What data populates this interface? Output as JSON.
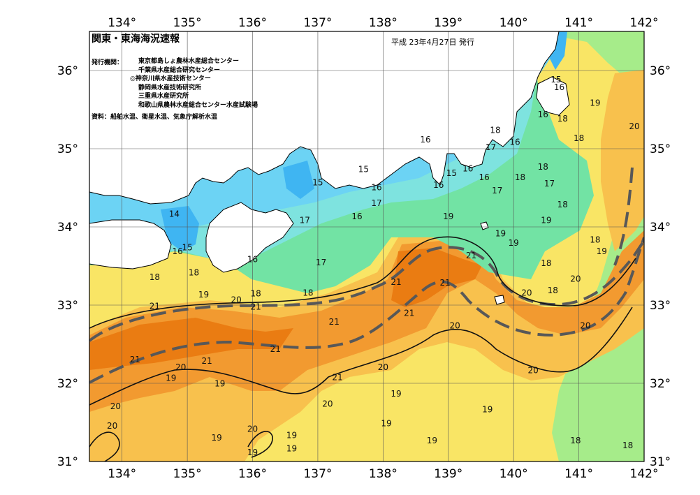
{
  "header": {
    "title": "関東・東海海況速報",
    "date": "平成 23年4月27日 発行"
  },
  "issuers": {
    "label": "発行機関：",
    "list": [
      "東京都島しょ農林水産総合センター",
      "千葉県水産総合研究センター",
      "◎神奈川県水産技術センター",
      "静岡県水産技術研究所",
      "三重県水産研究所",
      "和歌山県農林水産総合センター水産試験場"
    ]
  },
  "sources": "資料：船舶水温、衛星水温、気象庁解析水温",
  "axes": {
    "lon_labels": [
      "134°",
      "135°",
      "136°",
      "137°",
      "138°",
      "139°",
      "140°",
      "141°",
      "142°"
    ],
    "lat_labels": [
      "36°",
      "35°",
      "34°",
      "33°",
      "32°",
      "31°"
    ],
    "lon_range": [
      133.5,
      142.0
    ],
    "lat_range": [
      31.0,
      36.5
    ]
  },
  "temperature_colors": {
    "14": "#3fb5f2",
    "15": "#6cd3f4",
    "16": "#7ee3df",
    "17": "#72e3a4",
    "18": "#a6ec8a",
    "19": "#f9e565",
    "20": "#f8c14d",
    "21": "#f29a30",
    "22": "#ea7c12"
  },
  "land_color": "#ffffff",
  "contour_labels": [
    {
      "t": "15",
      "lon": 140.65,
      "lat": 35.85
    },
    {
      "t": "16",
      "lon": 140.7,
      "lat": 35.75
    },
    {
      "t": "19",
      "lon": 141.25,
      "lat": 35.55
    },
    {
      "t": "20",
      "lon": 141.85,
      "lat": 35.25
    },
    {
      "t": "16",
      "lon": 140.45,
      "lat": 35.4
    },
    {
      "t": "18",
      "lon": 140.75,
      "lat": 35.35
    },
    {
      "t": "18",
      "lon": 141.0,
      "lat": 35.1
    },
    {
      "t": "18",
      "lon": 139.72,
      "lat": 35.2
    },
    {
      "t": "17",
      "lon": 139.65,
      "lat": 34.98
    },
    {
      "t": "16",
      "lon": 140.02,
      "lat": 35.05
    },
    {
      "t": "16",
      "lon": 138.65,
      "lat": 35.08
    },
    {
      "t": "15",
      "lon": 137.7,
      "lat": 34.7
    },
    {
      "t": "15",
      "lon": 137.0,
      "lat": 34.53
    },
    {
      "t": "16",
      "lon": 137.9,
      "lat": 34.47
    },
    {
      "t": "16",
      "lon": 138.85,
      "lat": 34.5
    },
    {
      "t": "15",
      "lon": 139.05,
      "lat": 34.65
    },
    {
      "t": "16",
      "lon": 139.3,
      "lat": 34.71
    },
    {
      "t": "16",
      "lon": 139.55,
      "lat": 34.6
    },
    {
      "t": "18",
      "lon": 140.45,
      "lat": 34.73
    },
    {
      "t": "18",
      "lon": 140.1,
      "lat": 34.6
    },
    {
      "t": "17",
      "lon": 140.55,
      "lat": 34.52
    },
    {
      "t": "17",
      "lon": 139.75,
      "lat": 34.43
    },
    {
      "t": "17",
      "lon": 137.9,
      "lat": 34.27
    },
    {
      "t": "16",
      "lon": 137.6,
      "lat": 34.1
    },
    {
      "t": "17",
      "lon": 136.8,
      "lat": 34.05
    },
    {
      "t": "14",
      "lon": 134.8,
      "lat": 34.13
    },
    {
      "t": "15",
      "lon": 135.0,
      "lat": 33.7
    },
    {
      "t": "16",
      "lon": 134.85,
      "lat": 33.65
    },
    {
      "t": "16",
      "lon": 136.0,
      "lat": 33.55
    },
    {
      "t": "17",
      "lon": 137.05,
      "lat": 33.51
    },
    {
      "t": "18",
      "lon": 140.75,
      "lat": 34.25
    },
    {
      "t": "19",
      "lon": 139.0,
      "lat": 34.1
    },
    {
      "t": "19",
      "lon": 140.5,
      "lat": 34.05
    },
    {
      "t": "19",
      "lon": 139.8,
      "lat": 33.88
    },
    {
      "t": "19",
      "lon": 140.0,
      "lat": 33.76
    },
    {
      "t": "18",
      "lon": 141.25,
      "lat": 33.8
    },
    {
      "t": "19",
      "lon": 141.35,
      "lat": 33.65
    },
    {
      "t": "18",
      "lon": 140.5,
      "lat": 33.5
    },
    {
      "t": "21",
      "lon": 139.35,
      "lat": 33.6
    },
    {
      "t": "20",
      "lon": 140.95,
      "lat": 33.3
    },
    {
      "t": "18",
      "lon": 140.6,
      "lat": 33.15
    },
    {
      "t": "20",
      "lon": 140.2,
      "lat": 33.12
    },
    {
      "t": "21",
      "lon": 138.2,
      "lat": 33.26
    },
    {
      "t": "21",
      "lon": 138.95,
      "lat": 33.25
    },
    {
      "t": "18",
      "lon": 136.85,
      "lat": 33.12
    },
    {
      "t": "18",
      "lon": 135.1,
      "lat": 33.38
    },
    {
      "t": "18",
      "lon": 134.5,
      "lat": 33.32
    },
    {
      "t": "19",
      "lon": 135.25,
      "lat": 33.1
    },
    {
      "t": "20",
      "lon": 135.75,
      "lat": 33.03
    },
    {
      "t": "18",
      "lon": 136.05,
      "lat": 33.11
    },
    {
      "t": "21",
      "lon": 134.5,
      "lat": 32.95
    },
    {
      "t": "21",
      "lon": 136.05,
      "lat": 32.94
    },
    {
      "t": "21",
      "lon": 138.4,
      "lat": 32.86
    },
    {
      "t": "21",
      "lon": 137.25,
      "lat": 32.75
    },
    {
      "t": "20",
      "lon": 139.1,
      "lat": 32.7
    },
    {
      "t": "20",
      "lon": 141.1,
      "lat": 32.7
    },
    {
      "t": "21",
      "lon": 136.35,
      "lat": 32.4
    },
    {
      "t": "21",
      "lon": 135.3,
      "lat": 32.25
    },
    {
      "t": "21",
      "lon": 134.2,
      "lat": 32.27
    },
    {
      "t": "20",
      "lon": 134.9,
      "lat": 32.17
    },
    {
      "t": "20",
      "lon": 138.0,
      "lat": 32.17
    },
    {
      "t": "20",
      "lon": 140.3,
      "lat": 32.13
    },
    {
      "t": "21",
      "lon": 137.3,
      "lat": 32.04
    },
    {
      "t": "19",
      "lon": 134.75,
      "lat": 32.03
    },
    {
      "t": "19",
      "lon": 135.5,
      "lat": 31.96
    },
    {
      "t": "19",
      "lon": 138.2,
      "lat": 31.83
    },
    {
      "t": "20",
      "lon": 137.15,
      "lat": 31.7
    },
    {
      "t": "20",
      "lon": 133.9,
      "lat": 31.67
    },
    {
      "t": "19",
      "lon": 139.6,
      "lat": 31.63
    },
    {
      "t": "19",
      "lon": 138.05,
      "lat": 31.45
    },
    {
      "t": "20",
      "lon": 133.85,
      "lat": 31.42
    },
    {
      "t": "20",
      "lon": 136.0,
      "lat": 31.38
    },
    {
      "t": "19",
      "lon": 136.6,
      "lat": 31.3
    },
    {
      "t": "19",
      "lon": 135.45,
      "lat": 31.27
    },
    {
      "t": "19",
      "lon": 138.75,
      "lat": 31.23
    },
    {
      "t": "18",
      "lon": 140.95,
      "lat": 31.23
    },
    {
      "t": "18",
      "lon": 141.75,
      "lat": 31.17
    },
    {
      "t": "19",
      "lon": 136.0,
      "lat": 31.08
    },
    {
      "t": "19",
      "lon": 136.6,
      "lat": 31.13
    }
  ]
}
